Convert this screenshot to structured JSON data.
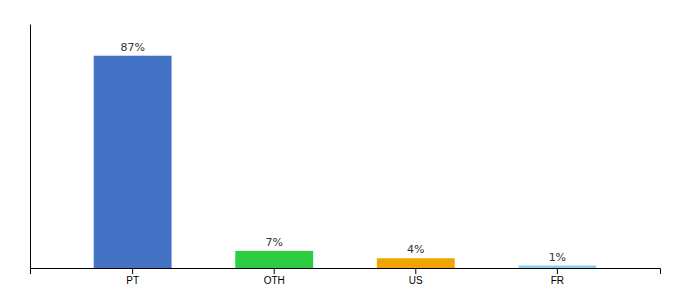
{
  "chart_data": {
    "type": "bar",
    "categories": [
      "PT",
      "OTH",
      "US",
      "FR"
    ],
    "values": [
      87,
      7,
      4,
      1
    ],
    "value_labels": [
      "87%",
      "7%",
      "4%",
      "1%"
    ],
    "colors": [
      "#4472c4",
      "#2ecc40",
      "#f0a500",
      "#87ceeb"
    ],
    "ylim": [
      0,
      100
    ],
    "grid": false,
    "data_labels": true,
    "tick_labels": "x"
  }
}
